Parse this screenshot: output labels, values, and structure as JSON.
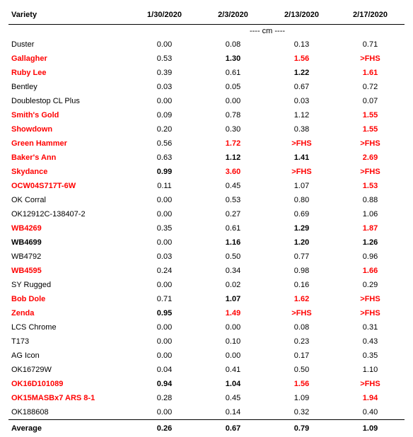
{
  "table": {
    "headers": [
      "Variety",
      "1/30/2020",
      "2/3/2020",
      "2/13/2020",
      "2/17/2020"
    ],
    "unit": "---- cm ----",
    "rows": [
      {
        "variety": "Duster",
        "red": false,
        "bold": false,
        "values": [
          [
            "0.00",
            0,
            0
          ],
          [
            "0.08",
            0,
            0
          ],
          [
            "0.13",
            0,
            0
          ],
          [
            "0.71",
            0,
            0
          ]
        ]
      },
      {
        "variety": "Gallagher",
        "red": true,
        "bold": true,
        "values": [
          [
            "0.53",
            0,
            0
          ],
          [
            "1.30",
            1,
            0
          ],
          [
            "1.56",
            1,
            1
          ],
          [
            ">FHS",
            1,
            1
          ]
        ]
      },
      {
        "variety": "Ruby Lee",
        "red": true,
        "bold": true,
        "values": [
          [
            "0.39",
            0,
            0
          ],
          [
            "0.61",
            0,
            0
          ],
          [
            "1.22",
            1,
            0
          ],
          [
            "1.61",
            1,
            1
          ]
        ]
      },
      {
        "variety": "Bentley",
        "red": false,
        "bold": false,
        "values": [
          [
            "0.03",
            0,
            0
          ],
          [
            "0.05",
            0,
            0
          ],
          [
            "0.67",
            0,
            0
          ],
          [
            "0.72",
            0,
            0
          ]
        ]
      },
      {
        "variety": "Doublestop CL Plus",
        "red": false,
        "bold": false,
        "values": [
          [
            "0.00",
            0,
            0
          ],
          [
            "0.00",
            0,
            0
          ],
          [
            "0.03",
            0,
            0
          ],
          [
            "0.07",
            0,
            0
          ]
        ]
      },
      {
        "variety": "Smith's Gold",
        "red": true,
        "bold": true,
        "values": [
          [
            "0.09",
            0,
            0
          ],
          [
            "0.78",
            0,
            0
          ],
          [
            "1.12",
            0,
            0
          ],
          [
            "1.55",
            1,
            1
          ]
        ]
      },
      {
        "variety": "Showdown",
        "red": true,
        "bold": true,
        "values": [
          [
            "0.20",
            0,
            0
          ],
          [
            "0.30",
            0,
            0
          ],
          [
            "0.38",
            0,
            0
          ],
          [
            "1.55",
            1,
            1
          ]
        ]
      },
      {
        "variety": "Green Hammer",
        "red": true,
        "bold": true,
        "values": [
          [
            "0.56",
            0,
            0
          ],
          [
            "1.72",
            1,
            1
          ],
          [
            ">FHS",
            1,
            1
          ],
          [
            ">FHS",
            1,
            1
          ]
        ]
      },
      {
        "variety": "Baker's Ann",
        "red": true,
        "bold": true,
        "values": [
          [
            "0.63",
            0,
            0
          ],
          [
            "1.12",
            1,
            0
          ],
          [
            "1.41",
            1,
            0
          ],
          [
            "2.69",
            1,
            1
          ]
        ]
      },
      {
        "variety": "Skydance",
        "red": true,
        "bold": true,
        "values": [
          [
            "0.99",
            1,
            0
          ],
          [
            "3.60",
            1,
            1
          ],
          [
            ">FHS",
            1,
            1
          ],
          [
            ">FHS",
            1,
            1
          ]
        ]
      },
      {
        "variety": "OCW04S717T-6W",
        "red": true,
        "bold": true,
        "values": [
          [
            "0.11",
            0,
            0
          ],
          [
            "0.45",
            0,
            0
          ],
          [
            "1.07",
            0,
            0
          ],
          [
            "1.53",
            1,
            1
          ]
        ]
      },
      {
        "variety": "OK Corral",
        "red": false,
        "bold": false,
        "values": [
          [
            "0.00",
            0,
            0
          ],
          [
            "0.53",
            0,
            0
          ],
          [
            "0.80",
            0,
            0
          ],
          [
            "0.88",
            0,
            0
          ]
        ]
      },
      {
        "variety": "OK12912C-138407-2",
        "red": false,
        "bold": false,
        "values": [
          [
            "0.00",
            0,
            0
          ],
          [
            "0.27",
            0,
            0
          ],
          [
            "0.69",
            0,
            0
          ],
          [
            "1.06",
            0,
            0
          ]
        ]
      },
      {
        "variety": "WB4269",
        "red": true,
        "bold": true,
        "values": [
          [
            "0.35",
            0,
            0
          ],
          [
            "0.61",
            0,
            0
          ],
          [
            "1.29",
            1,
            0
          ],
          [
            "1.87",
            1,
            1
          ]
        ]
      },
      {
        "variety": "WB4699",
        "red": false,
        "bold": true,
        "values": [
          [
            "0.00",
            0,
            0
          ],
          [
            "1.16",
            1,
            0
          ],
          [
            "1.20",
            1,
            0
          ],
          [
            "1.26",
            1,
            0
          ]
        ]
      },
      {
        "variety": "WB4792",
        "red": false,
        "bold": false,
        "values": [
          [
            "0.03",
            0,
            0
          ],
          [
            "0.50",
            0,
            0
          ],
          [
            "0.77",
            0,
            0
          ],
          [
            "0.96",
            0,
            0
          ]
        ]
      },
      {
        "variety": "WB4595",
        "red": true,
        "bold": true,
        "values": [
          [
            "0.24",
            0,
            0
          ],
          [
            "0.34",
            0,
            0
          ],
          [
            "0.98",
            0,
            0
          ],
          [
            "1.66",
            1,
            1
          ]
        ]
      },
      {
        "variety": "SY Rugged",
        "red": false,
        "bold": false,
        "values": [
          [
            "0.00",
            0,
            0
          ],
          [
            "0.02",
            0,
            0
          ],
          [
            "0.16",
            0,
            0
          ],
          [
            "0.29",
            0,
            0
          ]
        ]
      },
      {
        "variety": "Bob Dole",
        "red": true,
        "bold": true,
        "values": [
          [
            "0.71",
            0,
            0
          ],
          [
            "1.07",
            1,
            0
          ],
          [
            "1.62",
            1,
            1
          ],
          [
            ">FHS",
            1,
            1
          ]
        ]
      },
      {
        "variety": "Zenda",
        "red": true,
        "bold": true,
        "values": [
          [
            "0.95",
            1,
            0
          ],
          [
            "1.49",
            1,
            1
          ],
          [
            ">FHS",
            1,
            1
          ],
          [
            ">FHS",
            1,
            1
          ]
        ]
      },
      {
        "variety": "LCS Chrome",
        "red": false,
        "bold": false,
        "values": [
          [
            "0.00",
            0,
            0
          ],
          [
            "0.00",
            0,
            0
          ],
          [
            "0.08",
            0,
            0
          ],
          [
            "0.31",
            0,
            0
          ]
        ]
      },
      {
        "variety": "T173",
        "red": false,
        "bold": false,
        "values": [
          [
            "0.00",
            0,
            0
          ],
          [
            "0.10",
            0,
            0
          ],
          [
            "0.23",
            0,
            0
          ],
          [
            "0.43",
            0,
            0
          ]
        ]
      },
      {
        "variety": "AG Icon",
        "red": false,
        "bold": false,
        "values": [
          [
            "0.00",
            0,
            0
          ],
          [
            "0.00",
            0,
            0
          ],
          [
            "0.17",
            0,
            0
          ],
          [
            "0.35",
            0,
            0
          ]
        ]
      },
      {
        "variety": "OK16729W",
        "red": false,
        "bold": false,
        "values": [
          [
            "0.04",
            0,
            0
          ],
          [
            "0.41",
            0,
            0
          ],
          [
            "0.50",
            0,
            0
          ],
          [
            "1.10",
            0,
            0
          ]
        ]
      },
      {
        "variety": "OK16D101089",
        "red": true,
        "bold": true,
        "values": [
          [
            "0.94",
            1,
            0
          ],
          [
            "1.04",
            1,
            0
          ],
          [
            "1.56",
            1,
            1
          ],
          [
            ">FHS",
            1,
            1
          ]
        ]
      },
      {
        "variety": "OK15MASBx7 ARS 8-1",
        "red": true,
        "bold": true,
        "values": [
          [
            "0.28",
            0,
            0
          ],
          [
            "0.45",
            0,
            0
          ],
          [
            "1.09",
            0,
            0
          ],
          [
            "1.94",
            1,
            1
          ]
        ]
      },
      {
        "variety": "OK188608",
        "red": false,
        "bold": false,
        "values": [
          [
            "0.00",
            0,
            0
          ],
          [
            "0.14",
            0,
            0
          ],
          [
            "0.32",
            0,
            0
          ],
          [
            "0.40",
            0,
            0
          ]
        ]
      }
    ],
    "average": {
      "label": "Average",
      "values": [
        "0.26",
        "0.67",
        "0.79",
        "1.09"
      ]
    }
  },
  "colors": {
    "highlight": "#ff0000"
  }
}
